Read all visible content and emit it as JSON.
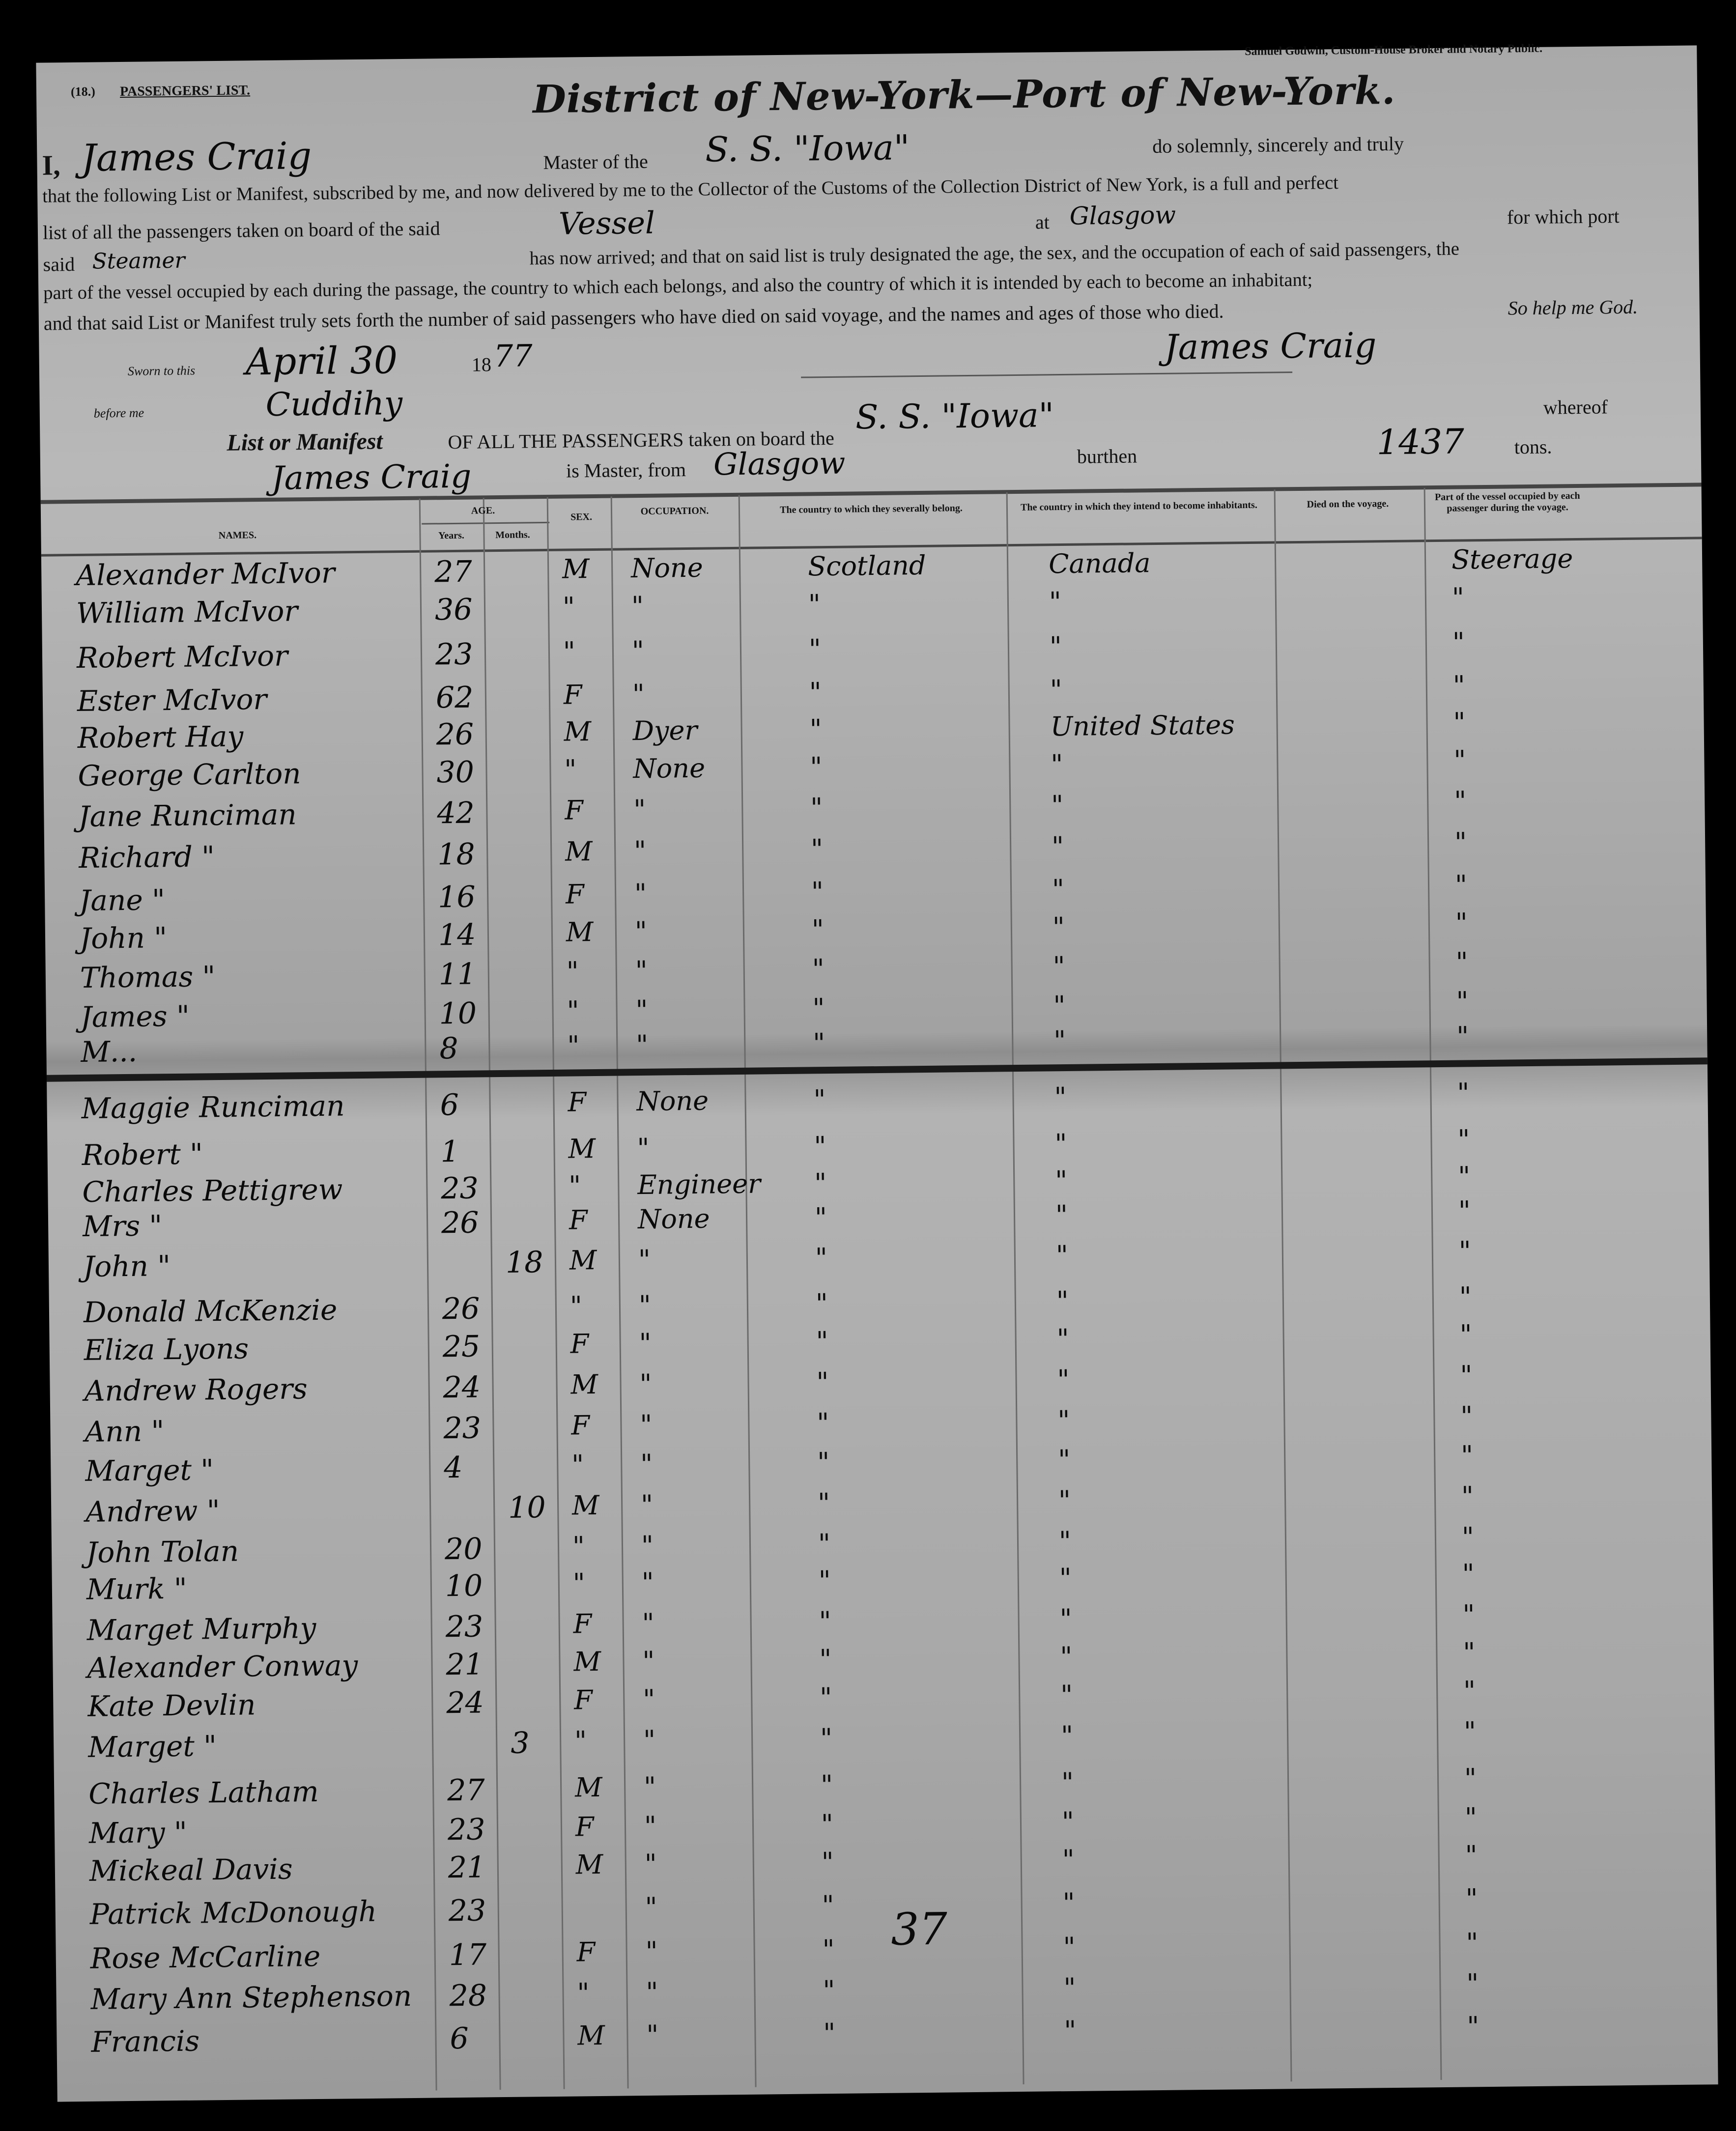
{
  "header": {
    "printer": "Samuel Godwin, Custom-House Broker and Notary Public.",
    "form_number": "(18.)",
    "form_title": "PASSENGERS' LIST.",
    "title": "District of New-York—Port of New-York."
  },
  "oath": {
    "i": "I,",
    "master_name": "James Craig",
    "master_of_the": "Master of the",
    "ship_name": "S. S. \"Iowa\"",
    "line1_end": "do solemnly, sincerely and truly",
    "line2": "that the following List or Manifest, subscribed by me, and now delivered by me to the Collector of the Customs of the Collection District of New York, is a full and perfect",
    "line3_start": "list of all the passengers taken on board of the said",
    "vessel": "Vessel",
    "at": "at",
    "port": "Glasgow",
    "line3_end": "for which port",
    "said": "said",
    "said_value": "Steamer",
    "line4": "has now arrived; and that on said list is truly designated the age, the sex, and the occupation of each of said passengers, the",
    "line5": "part of the vessel occupied by each during the passage, the country to which each belongs, and also the country of which it is intended by each to become an inhabitant;",
    "line6": "and that said List or Manifest truly sets forth the number of said passengers who have died on said voyage, and the names and ages of those who died.",
    "so_help": "So help me God.",
    "signature": "James Craig"
  },
  "jurat": {
    "sworn": "Sworn to this",
    "date": "April 30",
    "year_prefix": "18",
    "year_suffix": "77",
    "before_me": "before me",
    "notary_signature": "Cuddihy"
  },
  "manifest": {
    "list_label": "List or Manifest",
    "of_all": "OF ALL THE PASSENGERS taken on board the",
    "ship_name": "S. S. \"Iowa\"",
    "whereof": "whereof",
    "master_name": "James Craig",
    "is_master_from": "is Master, from",
    "from_port": "Glasgow",
    "burthen": "burthen",
    "tonnage": "1437",
    "tons": "tons."
  },
  "columns": {
    "names": "NAMES.",
    "age": "AGE.",
    "years": "Years.",
    "months": "Months.",
    "sex": "SEX.",
    "occupation": "OCCUPATION.",
    "country_belong": "The country to which they severally belong.",
    "country_intend": "The country in which they intend to become inhabitants.",
    "died": "Died on the voyage.",
    "part": "Part of the vessel occupied by each passenger during the voyage."
  },
  "rows": [
    {
      "name": "Alexander McIvor",
      "years": "27",
      "months": "",
      "sex": "M",
      "occupation": "None",
      "belong": "Scotland",
      "intend": "Canada",
      "part": "Steerage"
    },
    {
      "name": "William McIvor",
      "years": "36",
      "months": "",
      "sex": "\"",
      "occupation": "\"",
      "belong": "\"",
      "intend": "\"",
      "part": "\""
    },
    {
      "name": "Robert McIvor",
      "years": "23",
      "months": "",
      "sex": "\"",
      "occupation": "\"",
      "belong": "\"",
      "intend": "\"",
      "part": "\""
    },
    {
      "name": "Ester McIvor",
      "years": "62",
      "months": "",
      "sex": "F",
      "occupation": "\"",
      "belong": "\"",
      "intend": "\"",
      "part": "\""
    },
    {
      "name": "Robert Hay",
      "years": "26",
      "months": "",
      "sex": "M",
      "occupation": "Dyer",
      "belong": "\"",
      "intend": "United States",
      "part": "\""
    },
    {
      "name": "George Carlton",
      "years": "30",
      "months": "",
      "sex": "\"",
      "occupation": "None",
      "belong": "\"",
      "intend": "\"",
      "part": "\""
    },
    {
      "name": "Jane Runciman",
      "years": "42",
      "months": "",
      "sex": "F",
      "occupation": "\"",
      "belong": "\"",
      "intend": "\"",
      "part": "\""
    },
    {
      "name": "Richard  \"",
      "years": "18",
      "months": "",
      "sex": "M",
      "occupation": "\"",
      "belong": "\"",
      "intend": "\"",
      "part": "\""
    },
    {
      "name": "Jane  \"",
      "years": "16",
      "months": "",
      "sex": "F",
      "occupation": "\"",
      "belong": "\"",
      "intend": "\"",
      "part": "\""
    },
    {
      "name": "John  \"",
      "years": "14",
      "months": "",
      "sex": "M",
      "occupation": "\"",
      "belong": "\"",
      "intend": "\"",
      "part": "\""
    },
    {
      "name": "Thomas  \"",
      "years": "11",
      "months": "",
      "sex": "\"",
      "occupation": "\"",
      "belong": "\"",
      "intend": "\"",
      "part": "\""
    },
    {
      "name": "James  \"",
      "years": "10",
      "months": "",
      "sex": "\"",
      "occupation": "\"",
      "belong": "\"",
      "intend": "\"",
      "part": "\""
    },
    {
      "name": "M...",
      "years": "8",
      "months": "",
      "sex": "\"",
      "occupation": "\"",
      "belong": "\"",
      "intend": "\"",
      "part": "\""
    },
    {
      "name": "Maggie Runciman",
      "years": "6",
      "months": "",
      "sex": "F",
      "occupation": "None",
      "belong": "\"",
      "intend": "\"",
      "part": "\""
    },
    {
      "name": "Robert  \"",
      "years": "1",
      "months": "",
      "sex": "M",
      "occupation": "\"",
      "belong": "\"",
      "intend": "\"",
      "part": "\""
    },
    {
      "name": "Charles Pettigrew",
      "years": "23",
      "months": "",
      "sex": "\"",
      "occupation": "Engineer",
      "belong": "\"",
      "intend": "\"",
      "part": "\""
    },
    {
      "name": "Mrs  \"",
      "years": "26",
      "months": "",
      "sex": "F",
      "occupation": "None",
      "belong": "\"",
      "intend": "\"",
      "part": "\""
    },
    {
      "name": "John  \"",
      "years": "",
      "months": "18",
      "sex": "M",
      "occupation": "\"",
      "belong": "\"",
      "intend": "\"",
      "part": "\""
    },
    {
      "name": "Donald McKenzie",
      "years": "26",
      "months": "",
      "sex": "\"",
      "occupation": "\"",
      "belong": "\"",
      "intend": "\"",
      "part": "\""
    },
    {
      "name": "Eliza Lyons",
      "years": "25",
      "months": "",
      "sex": "F",
      "occupation": "\"",
      "belong": "\"",
      "intend": "\"",
      "part": "\""
    },
    {
      "name": "Andrew Rogers",
      "years": "24",
      "months": "",
      "sex": "M",
      "occupation": "\"",
      "belong": "\"",
      "intend": "\"",
      "part": "\""
    },
    {
      "name": "Ann  \"",
      "years": "23",
      "months": "",
      "sex": "F",
      "occupation": "\"",
      "belong": "\"",
      "intend": "\"",
      "part": "\""
    },
    {
      "name": "Marget  \"",
      "years": "4",
      "months": "",
      "sex": "\"",
      "occupation": "\"",
      "belong": "\"",
      "intend": "\"",
      "part": "\""
    },
    {
      "name": "Andrew  \"",
      "years": "",
      "months": "10",
      "sex": "M",
      "occupation": "\"",
      "belong": "\"",
      "intend": "\"",
      "part": "\""
    },
    {
      "name": "John Tolan",
      "years": "20",
      "months": "",
      "sex": "\"",
      "occupation": "\"",
      "belong": "\"",
      "intend": "\"",
      "part": "\""
    },
    {
      "name": "Murk  \"",
      "years": "10",
      "months": "",
      "sex": "\"",
      "occupation": "\"",
      "belong": "\"",
      "intend": "\"",
      "part": "\""
    },
    {
      "name": "Marget Murphy",
      "years": "23",
      "months": "",
      "sex": "F",
      "occupation": "\"",
      "belong": "\"",
      "intend": "\"",
      "part": "\""
    },
    {
      "name": "Alexander Conway",
      "years": "21",
      "months": "",
      "sex": "M",
      "occupation": "\"",
      "belong": "\"",
      "intend": "\"",
      "part": "\""
    },
    {
      "name": "Kate Devlin",
      "years": "24",
      "months": "",
      "sex": "F",
      "occupation": "\"",
      "belong": "\"",
      "intend": "\"",
      "part": "\""
    },
    {
      "name": "Marget  \"",
      "years": "",
      "months": "3",
      "sex": "\"",
      "occupation": "\"",
      "belong": "\"",
      "intend": "\"",
      "part": "\""
    },
    {
      "name": "Charles Latham",
      "years": "27",
      "months": "",
      "sex": "M",
      "occupation": "\"",
      "belong": "\"",
      "intend": "\"",
      "part": "\""
    },
    {
      "name": "Mary  \"",
      "years": "23",
      "months": "",
      "sex": "F",
      "occupation": "\"",
      "belong": "\"",
      "intend": "\"",
      "part": "\""
    },
    {
      "name": "Mickeal Davis",
      "years": "21",
      "months": "",
      "sex": "M",
      "occupation": "\"",
      "belong": "\"",
      "intend": "\"",
      "part": "\""
    },
    {
      "name": "Patrick McDonough",
      "years": "23",
      "months": "",
      "sex": "",
      "occupation": "\"",
      "belong": "\"",
      "intend": "\"",
      "part": "\""
    },
    {
      "name": "Rose McCarline",
      "years": "17",
      "months": "",
      "sex": "F",
      "occupation": "\"",
      "belong": "\"",
      "intend": "\"",
      "part": "\""
    },
    {
      "name": "Mary Ann Stephenson",
      "years": "28",
      "months": "",
      "sex": "\"",
      "occupation": "\"",
      "belong": "\"",
      "intend": "\"",
      "part": "\""
    },
    {
      "name": "Francis",
      "years": "6",
      "months": "",
      "sex": "M",
      "occupation": "\"",
      "belong": "\"",
      "intend": "\"",
      "part": "\""
    }
  ],
  "total_note": "37"
}
